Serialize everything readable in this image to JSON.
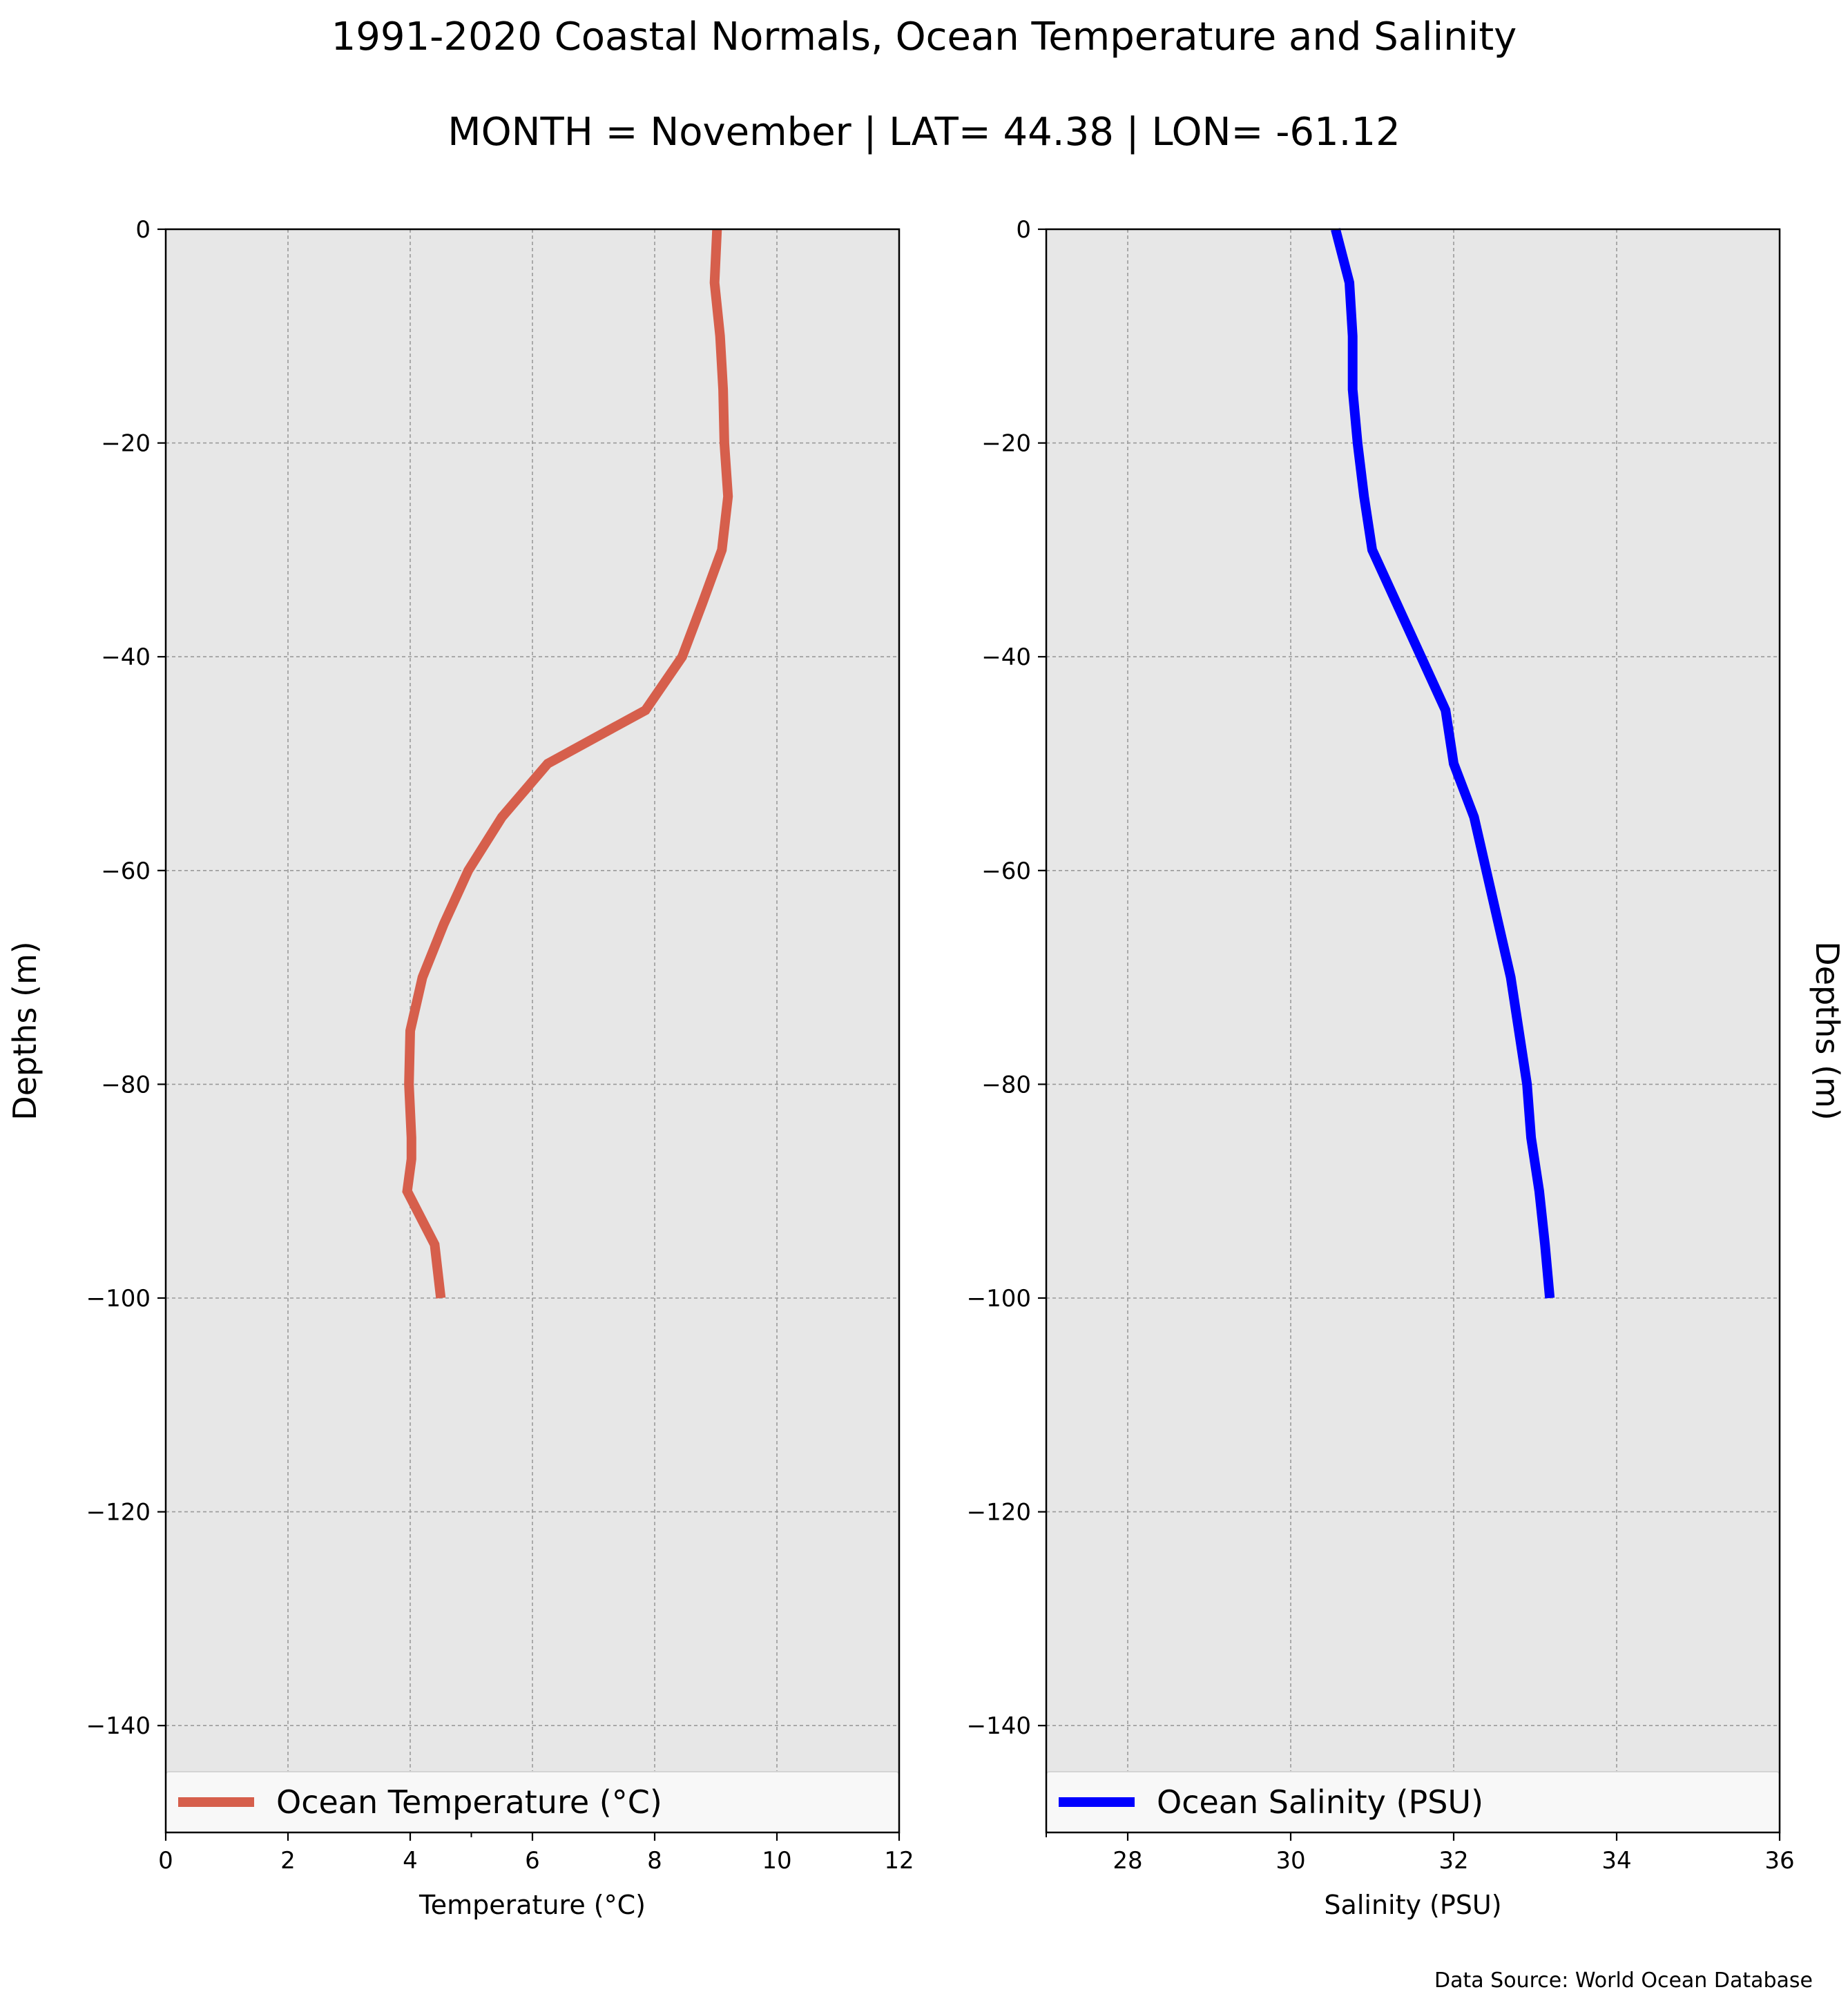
{
  "figure": {
    "title": "1991-2020 Coastal Normals, Ocean Temperature and Salinity",
    "subtitle": "MONTH = November | LAT= 44.38 | LON= -61.12",
    "source": "Data Source: World Ocean Database",
    "background_color": "#ffffff",
    "panel_color": "#e7e7e7",
    "grid_color": "#9a9a9a"
  },
  "chart_data": [
    {
      "type": "line",
      "xlabel": "Temperature ($^\\circ$C)",
      "xlabel_display": "Temperature (°C)",
      "ylabel": "Depths (m)",
      "xlim": [
        0,
        12
      ],
      "ylim": [
        -150,
        0
      ],
      "xticks": [
        0,
        2,
        4,
        6,
        8,
        10,
        12
      ],
      "xtick_labels": [
        "0",
        "2",
        "4",
        "6",
        "8",
        "10",
        "12"
      ],
      "yticks": [
        0,
        -20,
        -40,
        -60,
        -80,
        -100,
        -120,
        -140
      ],
      "ytick_labels": [
        "0",
        "−20",
        "−40",
        "−60",
        "−80",
        "−100",
        "−120",
        "−140"
      ],
      "grid": true,
      "legend_position": "bottom",
      "series": [
        {
          "name": "Ocean Temperature ($^\\circ$C)",
          "name_display": "Ocean Temperature (°C)",
          "color": "#d65f4c",
          "x": [
            9.02,
            8.98,
            9.07,
            9.12,
            9.14,
            9.2,
            9.1,
            8.78,
            8.45,
            7.85,
            6.25,
            5.5,
            4.95,
            4.55,
            4.2,
            4.0,
            3.98,
            4.02,
            4.02,
            3.95,
            4.4,
            4.5
          ],
          "y": [
            0,
            -5,
            -10,
            -15,
            -20,
            -25,
            -30,
            -35,
            -40,
            -45,
            -50,
            -55,
            -60,
            -65,
            -70,
            -75,
            -80,
            -85,
            -87,
            -90,
            -95,
            -100
          ]
        }
      ]
    },
    {
      "type": "line",
      "xlabel": "Salinity (PSU)",
      "ylabel": "Depths (m)",
      "xlim": [
        27,
        36
      ],
      "ylim": [
        -150,
        0
      ],
      "xticks": [
        28,
        30,
        32,
        34,
        36
      ],
      "xtick_labels": [
        "28",
        "30",
        "32",
        "34",
        "36"
      ],
      "yticks": [
        0,
        -20,
        -40,
        -60,
        -80,
        -100,
        -120,
        -140
      ],
      "ytick_labels": [
        "0",
        "−20",
        "−40",
        "−60",
        "−80",
        "−100",
        "−120",
        "−140"
      ],
      "grid": true,
      "legend_position": "bottom",
      "series": [
        {
          "name": "Ocean Salinity (PSU)",
          "color": "#0000ff",
          "x": [
            30.55,
            30.72,
            30.76,
            30.76,
            30.82,
            30.9,
            31.0,
            31.3,
            31.6,
            31.9,
            32.0,
            32.25,
            32.4,
            32.55,
            32.7,
            32.8,
            32.9,
            32.95,
            33.0,
            33.05,
            33.12,
            33.18
          ],
          "y": [
            0,
            -5,
            -10,
            -15,
            -20,
            -25,
            -30,
            -35,
            -40,
            -45,
            -50,
            -55,
            -60,
            -65,
            -70,
            -75,
            -80,
            -85,
            -87.5,
            -90,
            -95,
            -100
          ]
        }
      ]
    }
  ]
}
